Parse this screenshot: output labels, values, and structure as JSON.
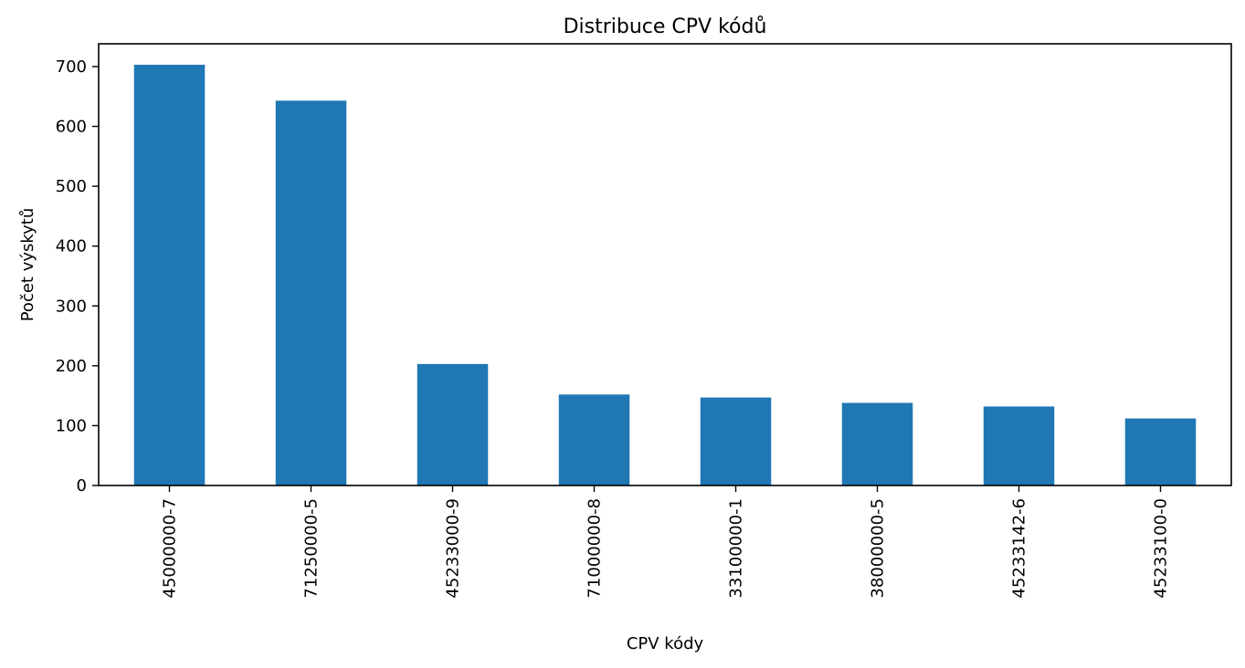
{
  "chart_data": {
    "type": "bar",
    "title": "Distribuce CPV kódů",
    "xlabel": "CPV kódy",
    "ylabel": "Počet výskytů",
    "categories": [
      "45000000-7",
      "71250000-5",
      "45233000-9",
      "71000000-8",
      "33100000-1",
      "38000000-5",
      "45233142-6",
      "45233100-0"
    ],
    "values": [
      703,
      643,
      203,
      152,
      147,
      138,
      132,
      112
    ],
    "ylim": [
      0,
      738
    ],
    "yticks": [
      0,
      100,
      200,
      300,
      400,
      500,
      600,
      700
    ],
    "grid": false,
    "legend": "none",
    "bar_color": "#1f77b4"
  }
}
